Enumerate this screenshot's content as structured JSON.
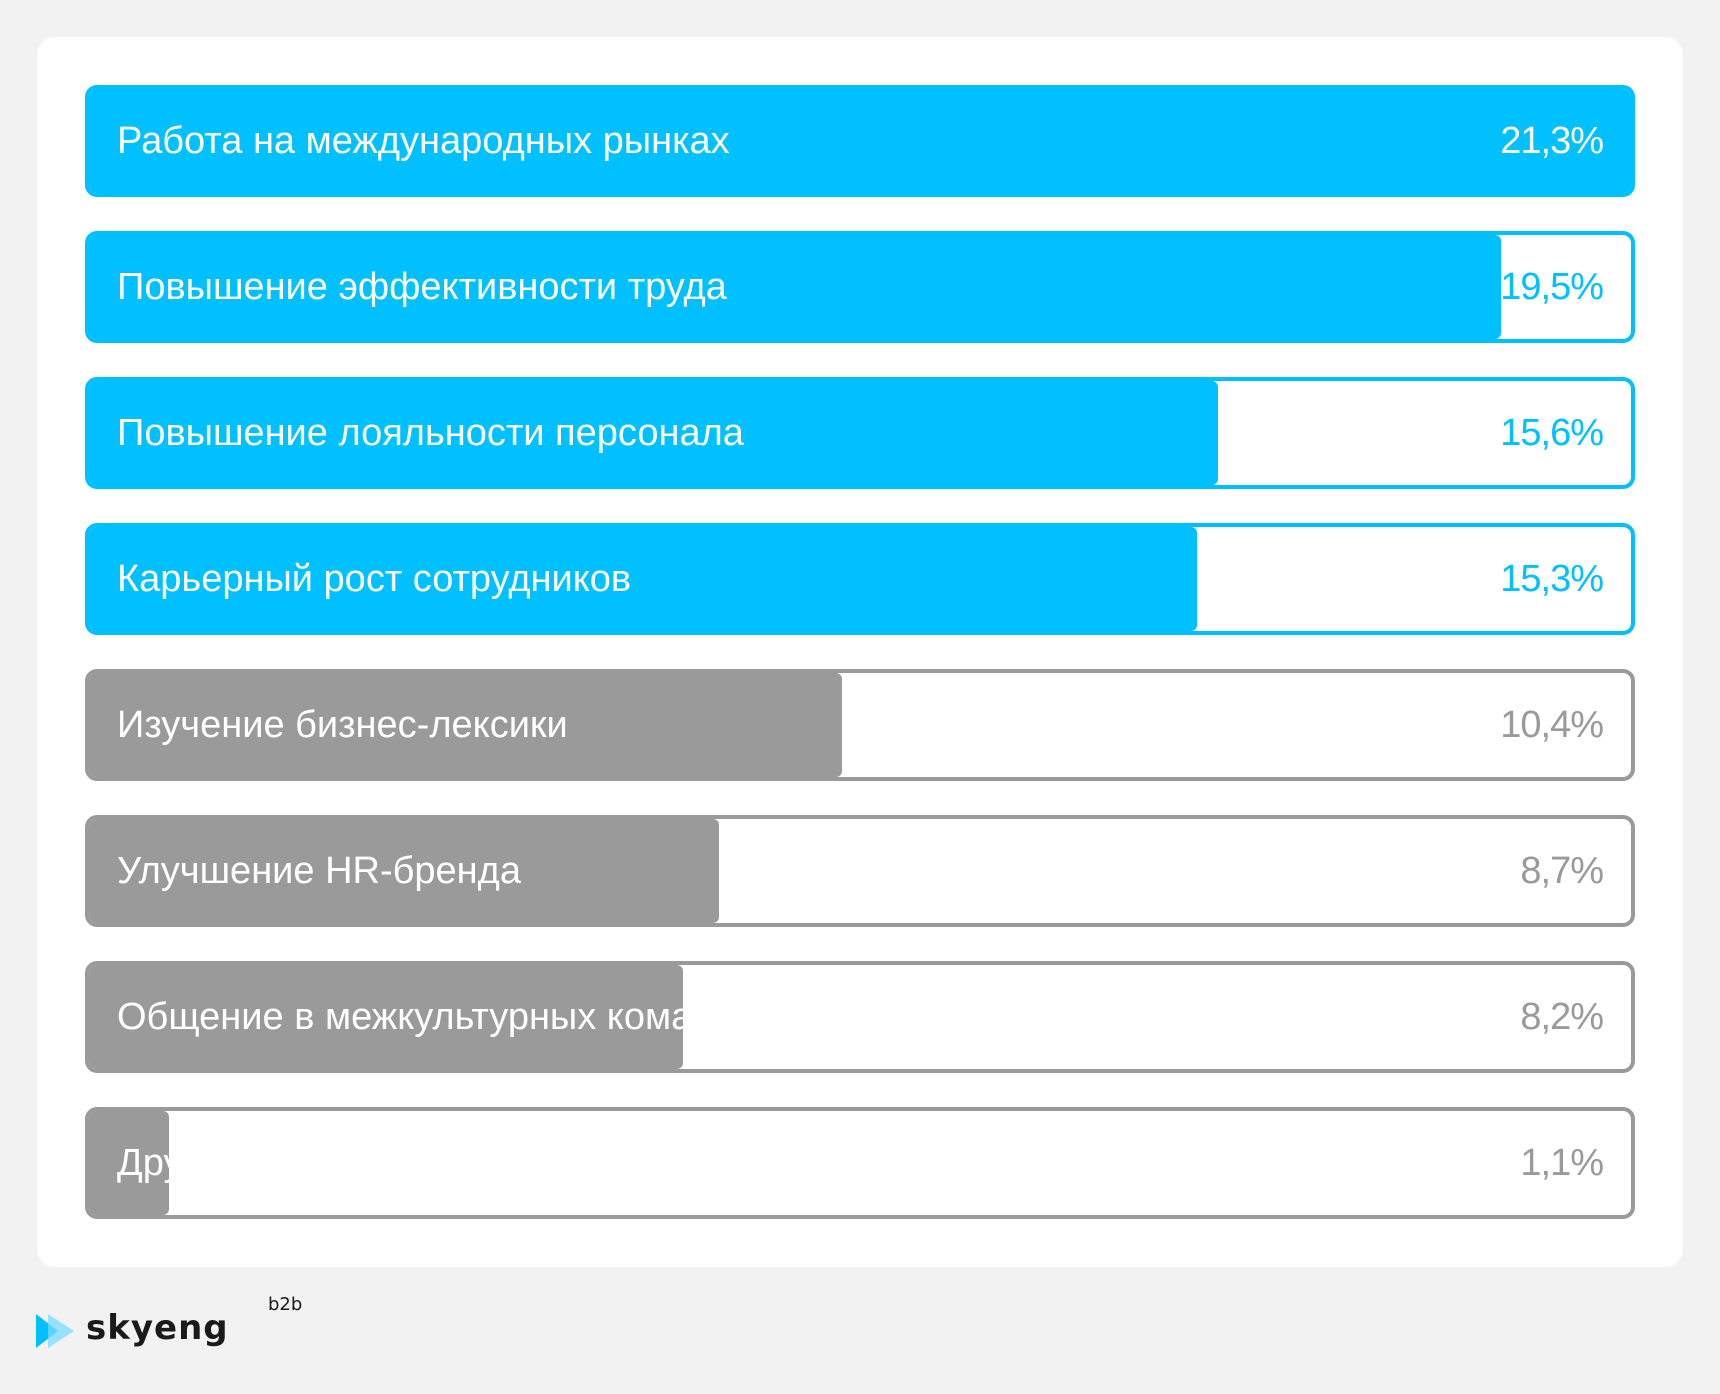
{
  "colors": {
    "accent": "#00c0ff",
    "muted": "#9a9a9a"
  },
  "chart_data": {
    "type": "bar",
    "orientation": "horizontal",
    "title": "",
    "xlabel": "",
    "ylabel": "",
    "unit": "%",
    "categories": [
      "Работа на международных рынках",
      "Повышение эффективности труда",
      "Повышение лояльности персонала",
      "Карьерный рост сотрудников",
      "Изучение бизнес-лексики",
      "Улучшение HR-бренда",
      "Общение в межкультурных командах",
      "Другие"
    ],
    "values": [
      21.3,
      19.5,
      15.6,
      15.3,
      10.4,
      8.7,
      8.2,
      1.1
    ],
    "value_labels": [
      "21,3%",
      "19,5%",
      "15,6%",
      "15,3%",
      "10,4%",
      "8,7%",
      "8,2%",
      "1,1%"
    ],
    "highlight": [
      "accent",
      "accent",
      "accent",
      "accent",
      "muted",
      "muted",
      "muted",
      "muted"
    ],
    "xlim": [
      0,
      21.3
    ],
    "grid": false,
    "legend": "none"
  },
  "logo": {
    "name": "skyeng",
    "suffix": "b2b",
    "icon": "play-arrow-icon"
  }
}
